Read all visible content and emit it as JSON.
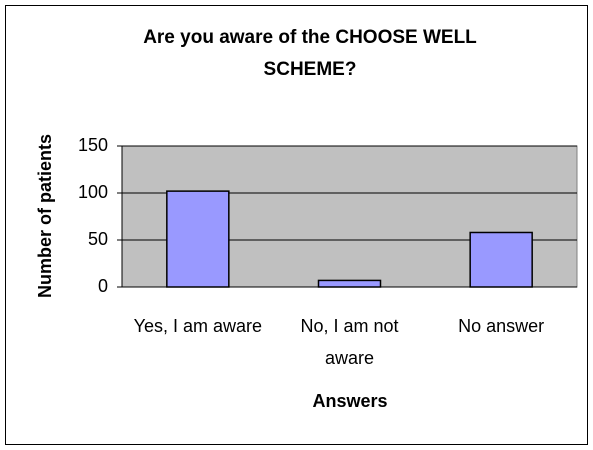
{
  "chart_data": {
    "type": "bar",
    "title": "Are you aware of the CHOOSE WELL SCHEME?",
    "categories": [
      "Yes, I am aware",
      "No, I am not aware",
      "No answer"
    ],
    "values": [
      102,
      7,
      58
    ],
    "color": "#9999ff",
    "xlabel": "Answers",
    "ylabel": "Number of patients",
    "ylim": [
      0,
      150
    ],
    "yticks": [
      0,
      50,
      100,
      150
    ],
    "grid": true
  }
}
